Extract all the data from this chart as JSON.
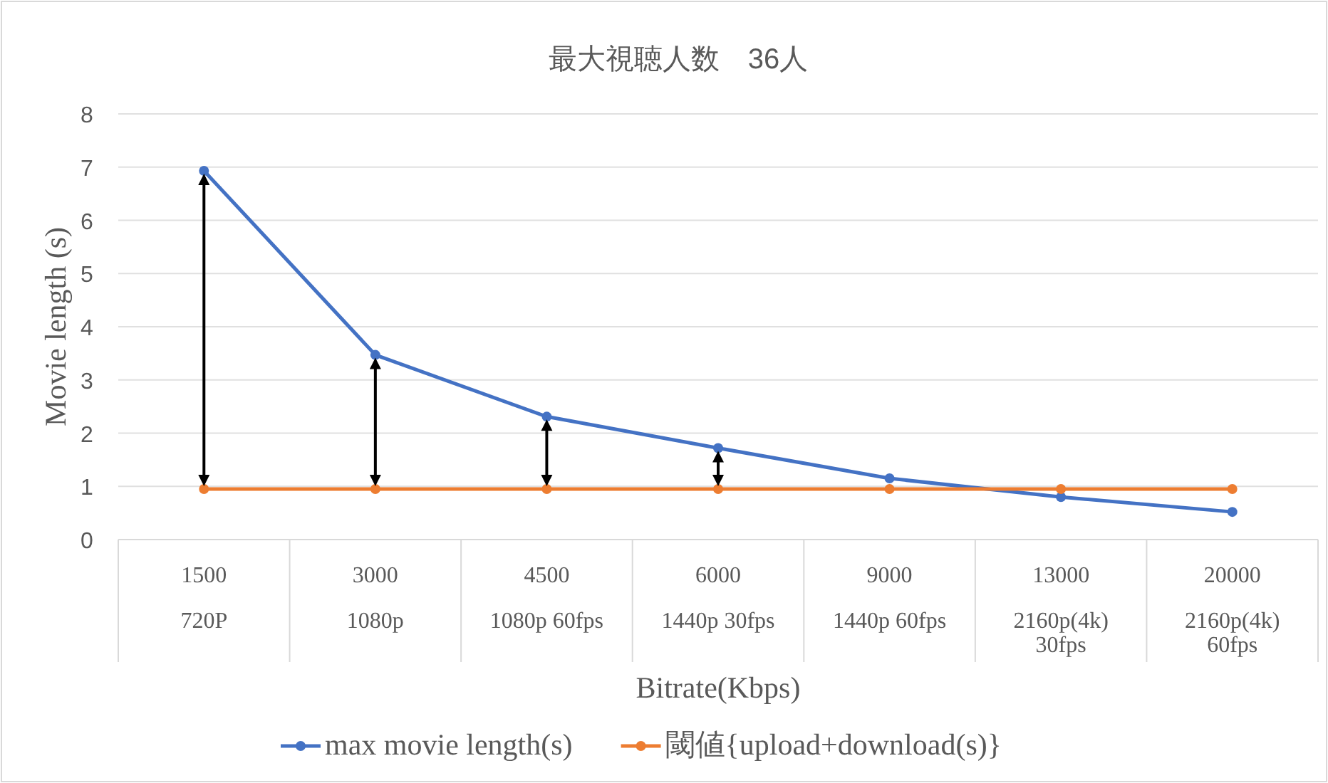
{
  "chart_data": {
    "type": "line",
    "title": "最大視聴人数　36人",
    "xlabel": "Bitrate(Kbps)",
    "ylabel": "Movie length (s)",
    "categories": [
      "1500\n720P",
      "3000\n1080p",
      "4500\n1080p 60fps",
      "6000\n1440p 30fps",
      "9000\n1440p 60fps",
      "13000\n2160p(4k)\n30fps",
      "20000\n2160p(4k)\n60fps"
    ],
    "series": [
      {
        "name": "max movie length(s)",
        "color": "#4472c4",
        "values": [
          6.93,
          3.47,
          2.31,
          1.72,
          1.15,
          0.8,
          0.52
        ]
      },
      {
        "name": "閾値{upload+download(s)}",
        "color": "#ed7d31",
        "values": [
          0.95,
          0.95,
          0.95,
          0.95,
          0.95,
          0.95,
          0.95
        ]
      }
    ],
    "ylim": [
      0,
      8
    ],
    "yticks": [
      0,
      1,
      2,
      3,
      4,
      5,
      6,
      7,
      8
    ],
    "grid": "y",
    "legend": "bottom",
    "marker": "circle",
    "line_style": "solid"
  }
}
